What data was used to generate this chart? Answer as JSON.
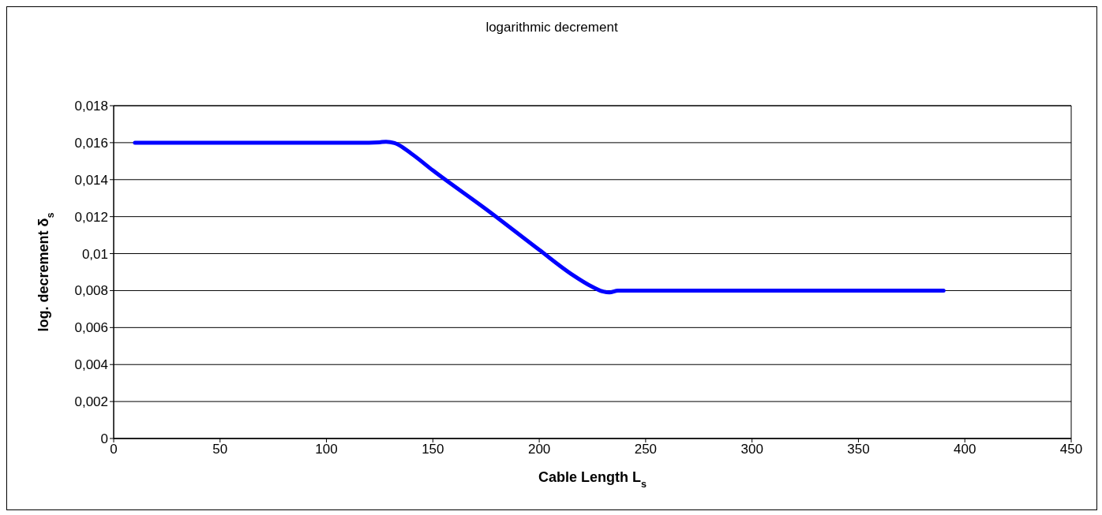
{
  "chart_data": {
    "type": "line",
    "title": "logarithmic decrement",
    "xlabel": "Cable Length L$_{s}$",
    "ylabel": "log. decrement δ$_{s}$",
    "x": [
      10,
      50,
      100,
      120,
      125,
      128,
      132,
      140,
      150,
      175,
      200,
      215,
      225,
      230,
      233,
      237,
      245,
      300,
      350,
      390
    ],
    "series": [
      {
        "color": "#0000ff",
        "values": [
          0.016,
          0.016,
          0.016,
          0.016,
          0.01602,
          0.01605,
          0.01598,
          0.0154,
          0.0145,
          0.0124,
          0.0102,
          0.0089,
          0.0082,
          0.00795,
          0.0079,
          0.008,
          0.008,
          0.008,
          0.008,
          0.008
        ]
      }
    ],
    "xlim": [
      0,
      450
    ],
    "xticks": [
      0,
      50,
      100,
      150,
      200,
      250,
      300,
      350,
      400,
      450
    ],
    "ylim": [
      0,
      0.018
    ],
    "yticks": [
      0,
      {
        "value": 0.002,
        "label": "0,002"
      },
      {
        "value": 0.004,
        "label": "0,004"
      },
      {
        "value": 0.006,
        "label": "0,006"
      },
      {
        "value": 0.008,
        "label": "0,008"
      },
      {
        "value": 0.01,
        "label": "0,01"
      },
      {
        "value": 0.012,
        "label": "0,012"
      },
      {
        "value": 0.014,
        "label": "0,014"
      },
      {
        "value": 0.016,
        "label": "0,016"
      },
      {
        "value": 0.018,
        "label": "0,018"
      }
    ],
    "grid": "y",
    "marker": "none",
    "line_style": "solid"
  }
}
